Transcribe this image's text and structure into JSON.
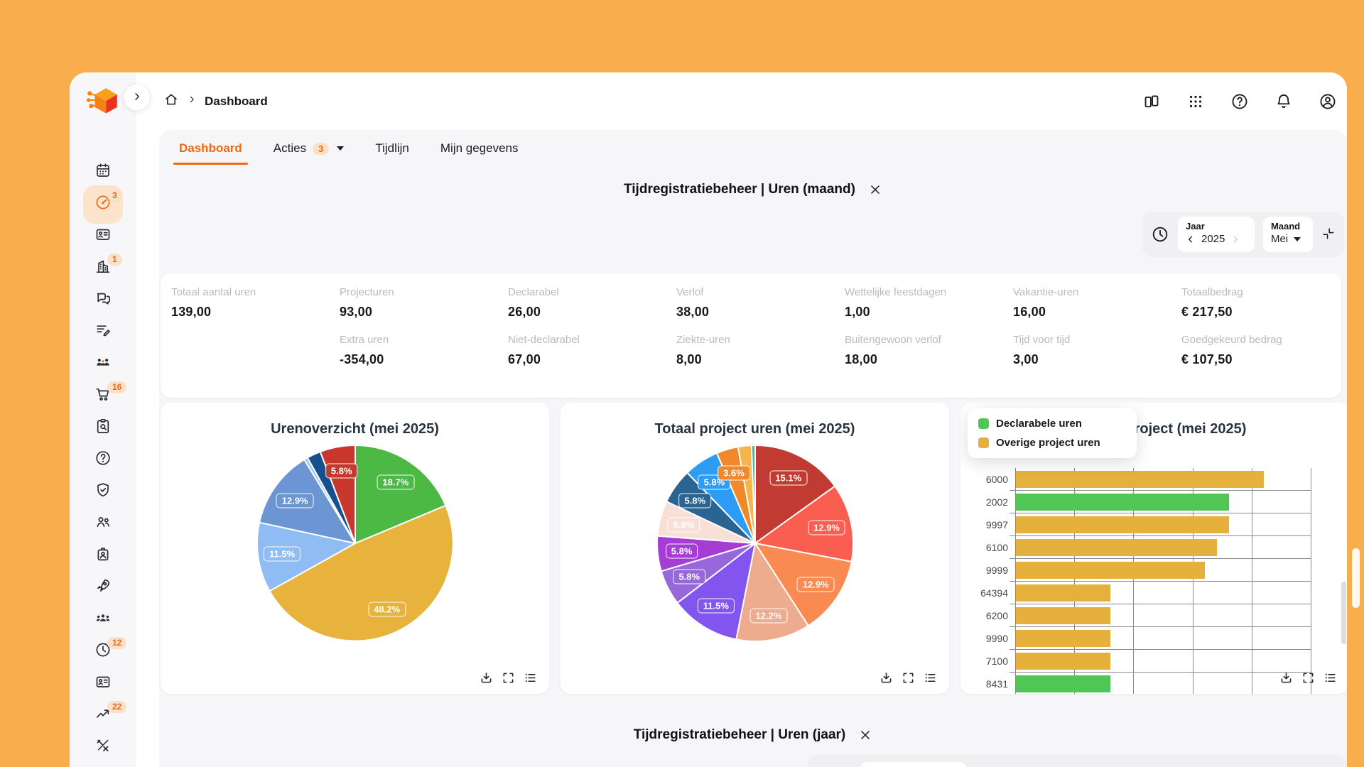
{
  "theme": {
    "frame_orange": "#F9AE4D",
    "accent": "#ED6A13",
    "accent_soft": "#FBE3CC",
    "content_bg": "#F6F6F8",
    "text_gray": "#B9BABF"
  },
  "header": {
    "breadcrumb": "Dashboard",
    "icons": [
      "panel",
      "apps-grid",
      "help",
      "notifications",
      "account"
    ]
  },
  "sidebar": {
    "items": [
      {
        "name": "calendar"
      },
      {
        "name": "dashboard",
        "badge": "3",
        "active": true
      },
      {
        "name": "id-card"
      },
      {
        "name": "company",
        "badge": "1"
      },
      {
        "name": "chat"
      },
      {
        "name": "task-list"
      },
      {
        "name": "team"
      },
      {
        "name": "cart",
        "badge": "16"
      },
      {
        "name": "clipboard-search"
      },
      {
        "name": "help"
      },
      {
        "name": "shield"
      },
      {
        "name": "people"
      },
      {
        "name": "badge-id"
      },
      {
        "name": "rocket"
      },
      {
        "name": "group"
      },
      {
        "name": "clock",
        "badge": "12"
      },
      {
        "name": "contact-card"
      },
      {
        "name": "trend",
        "badge": "22"
      },
      {
        "name": "tools"
      }
    ]
  },
  "tabs": {
    "items": [
      {
        "label": "Dashboard",
        "active": true
      },
      {
        "label": "Acties",
        "badge": "3",
        "caret": true
      },
      {
        "label": "Tijdlijn"
      },
      {
        "label": "Mijn gegevens"
      }
    ]
  },
  "month_section": {
    "title": "Tijdregistratiebeheer | Uren (maand)"
  },
  "year_section": {
    "title": "Tijdregistratiebeheer | Uren (jaar)"
  },
  "filter": {
    "year_label": "Jaar",
    "year_value": "2025",
    "month_label": "Maand",
    "month_value": "Mei"
  },
  "stats": {
    "row1": [
      {
        "label": "Totaal aantal uren",
        "value": "139,00"
      },
      {
        "label": "Projecturen",
        "value": "93,00"
      },
      {
        "label": "Declarabel",
        "value": "26,00"
      },
      {
        "label": "Verlof",
        "value": "38,00"
      },
      {
        "label": "Wettelijke feestdagen",
        "value": "1,00"
      },
      {
        "label": "Vakantie-uren",
        "value": "16,00"
      },
      {
        "label": "Totaalbedrag",
        "value": "€ 217,50"
      }
    ],
    "row2": [
      {
        "label": "Extra uren",
        "value": "-354,00"
      },
      {
        "label": "Niet-declarabel",
        "value": "67,00"
      },
      {
        "label": "Ziekte-uren",
        "value": "8,00"
      },
      {
        "label": "Buitengewoon verlof",
        "value": "18,00"
      },
      {
        "label": "Tijd voor tijd",
        "value": "3,00"
      },
      {
        "label": "Goedgekeurd bedrag",
        "value": "€ 107,50"
      }
    ]
  },
  "chart_actions": [
    "download",
    "fullscreen",
    "list"
  ],
  "chart_data": [
    {
      "type": "pie",
      "title": "Urenoverzicht (mei 2025)",
      "slices": [
        {
          "label": "18.7%",
          "value": 18.7,
          "color": "#4CB944"
        },
        {
          "label": "48.2%",
          "value": 48.2,
          "color": "#E7B33C"
        },
        {
          "label": "11.5%",
          "value": 11.5,
          "color": "#8FBCF2"
        },
        {
          "label": "12.9%",
          "value": 12.9,
          "color": "#6B95D3"
        },
        {
          "label": "",
          "value": 0.6,
          "color": "#9CC4EF"
        },
        {
          "label": "",
          "value": 2.3,
          "color": "#17508F"
        },
        {
          "label": "5.8%",
          "value": 5.8,
          "color": "#C8372D"
        }
      ]
    },
    {
      "type": "pie",
      "title": "Totaal project uren (mei 2025)",
      "slices": [
        {
          "label": "15.1%",
          "value": 15.1,
          "color": "#C23B33"
        },
        {
          "label": "12.9%",
          "value": 12.9,
          "color": "#F95E51"
        },
        {
          "label": "12.9%",
          "value": 12.9,
          "color": "#F98A52"
        },
        {
          "label": "12.2%",
          "value": 12.2,
          "color": "#EEAC8E"
        },
        {
          "label": "11.5%",
          "value": 11.5,
          "color": "#8355EF"
        },
        {
          "label": "5.8%",
          "value": 5.8,
          "color": "#9768DA"
        },
        {
          "label": "5.8%",
          "value": 5.8,
          "color": "#A53DD5"
        },
        {
          "label": "5.8%",
          "value": 5.8,
          "color": "#F8DFD7"
        },
        {
          "label": "5.8%",
          "value": 5.8,
          "color": "#2A6492"
        },
        {
          "label": "5.8%",
          "value": 5.8,
          "color": "#2D9CF4"
        },
        {
          "label": "3.6%",
          "value": 3.6,
          "color": "#F1892B"
        },
        {
          "label": "",
          "value": 2.2,
          "color": "#F6B44C"
        },
        {
          "label": "",
          "value": 0.6,
          "color": "#2BC1AA"
        }
      ]
    },
    {
      "type": "bar",
      "title": "Uren per project (mei 2025)",
      "orientation": "horizontal",
      "legend": [
        {
          "name": "Declarabele uren",
          "color": "#50C654"
        },
        {
          "name": "Overige project uren",
          "color": "#E5B13C"
        }
      ],
      "xlim": [
        0,
        25
      ],
      "grid_step": 5,
      "rows": [
        {
          "category": "6000",
          "value": 21,
          "series": 1
        },
        {
          "category": "2002",
          "value": 18,
          "series": 0
        },
        {
          "category": "9997",
          "value": 18,
          "series": 1
        },
        {
          "category": "6100",
          "value": 17,
          "series": 1
        },
        {
          "category": "9999",
          "value": 16,
          "series": 1
        },
        {
          "category": "64394",
          "value": 8,
          "series": 1
        },
        {
          "category": "6200",
          "value": 8,
          "series": 1
        },
        {
          "category": "9990",
          "value": 8,
          "series": 1
        },
        {
          "category": "7100",
          "value": 8,
          "series": 1
        },
        {
          "category": "8431",
          "value": 8,
          "series": 0
        }
      ]
    }
  ]
}
